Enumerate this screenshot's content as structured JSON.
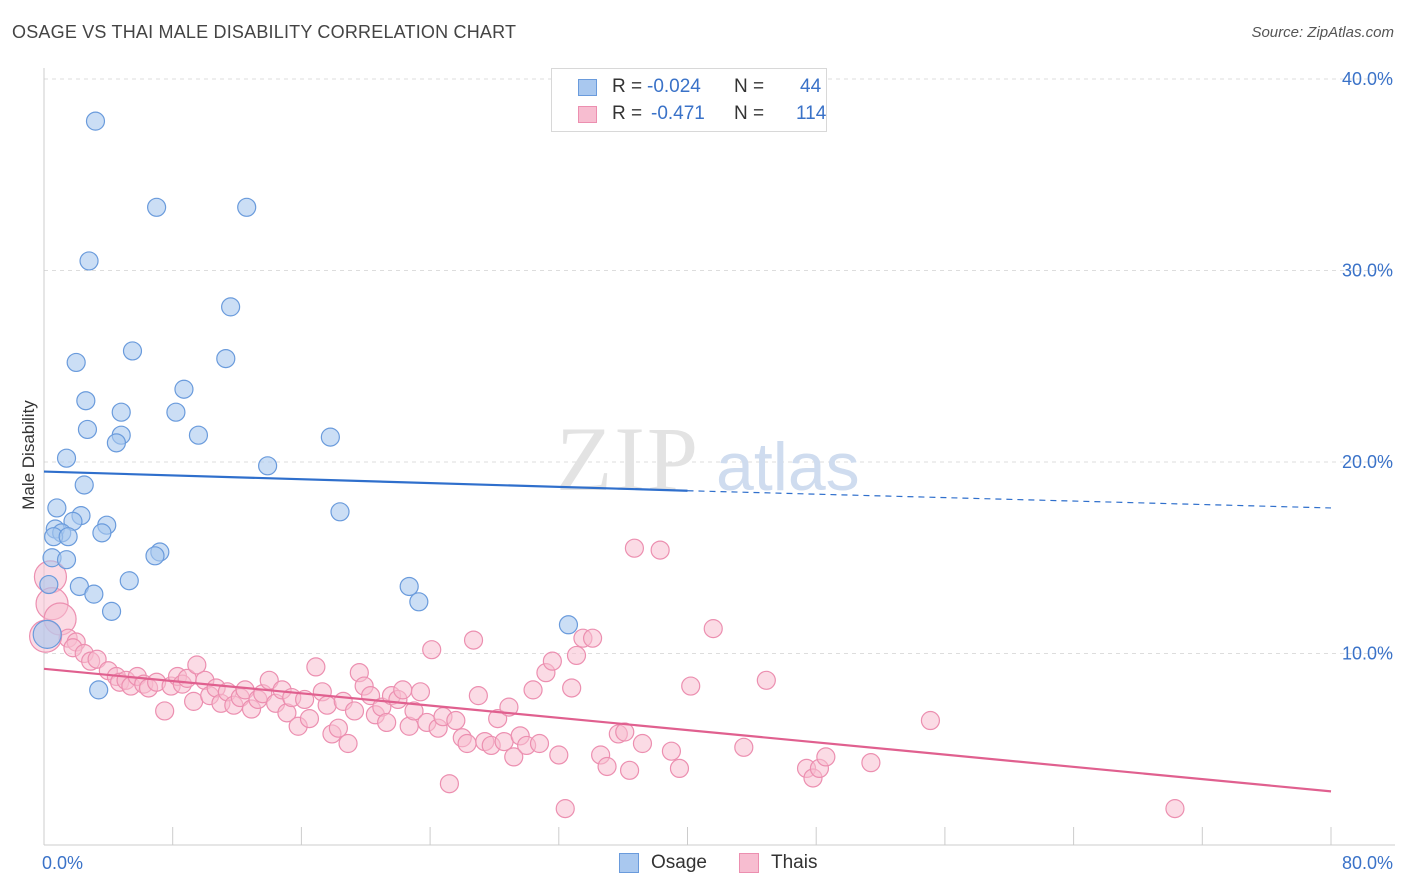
{
  "header": {
    "title": "OSAGE VS THAI MALE DISABILITY CORRELATION CHART",
    "source": "Source: ZipAtlas.com"
  },
  "legend": {
    "osage": {
      "r_label": "R =",
      "r_value": "-0.024",
      "n_label": "N =",
      "n_value": "44"
    },
    "thais": {
      "r_label": "R =",
      "r_value": "-0.471",
      "n_label": "N =",
      "n_value": "114"
    }
  },
  "bottom_legend": {
    "osage": "Osage",
    "thais": "Thais"
  },
  "colors": {
    "osage_fill": "#a9c8ef",
    "osage_stroke": "#6a9bdc",
    "osage_line": "#2f6fcc",
    "thais_fill": "#f7bdd0",
    "thais_stroke": "#ec8fb0",
    "thais_line": "#e0608f",
    "tick_text": "#3a72c8",
    "grid": "#dddddd"
  },
  "watermark": "ZIPatlas",
  "chart_data": {
    "type": "scatter",
    "title": "OSAGE VS THAI MALE DISABILITY CORRELATION CHART",
    "xlabel": "",
    "ylabel": "Male Disability",
    "xlim": [
      0,
      80
    ],
    "ylim": [
      0,
      40
    ],
    "x_ticks_labeled": [
      "0.0%",
      "80.0%"
    ],
    "y_ticks": [
      {
        "value": 10,
        "label": "10.0%"
      },
      {
        "value": 20,
        "label": "20.0%"
      },
      {
        "value": 30,
        "label": "30.0%"
      },
      {
        "value": 40,
        "label": "40.0%"
      }
    ],
    "grid": true,
    "legend_position": "top-center",
    "series": [
      {
        "name": "Osage",
        "r": -0.024,
        "n": 44,
        "trend": {
          "x0": 0,
          "y0": 19.5,
          "x1": 40,
          "y1": 18.5,
          "dashed_to_x": 80,
          "dashed_y": 17.6
        },
        "points": [
          [
            3.2,
            37.8
          ],
          [
            7.0,
            33.3
          ],
          [
            12.6,
            33.3
          ],
          [
            2.8,
            30.5
          ],
          [
            11.6,
            28.1
          ],
          [
            5.5,
            25.8
          ],
          [
            11.3,
            25.4
          ],
          [
            2.0,
            25.2
          ],
          [
            8.7,
            23.8
          ],
          [
            2.6,
            23.2
          ],
          [
            4.8,
            22.6
          ],
          [
            8.2,
            22.6
          ],
          [
            2.7,
            21.7
          ],
          [
            4.8,
            21.4
          ],
          [
            9.6,
            21.4
          ],
          [
            17.8,
            21.3
          ],
          [
            4.5,
            21.0
          ],
          [
            1.4,
            20.2
          ],
          [
            13.9,
            19.8
          ],
          [
            2.5,
            18.8
          ],
          [
            0.8,
            17.6
          ],
          [
            18.4,
            17.4
          ],
          [
            2.3,
            17.2
          ],
          [
            1.8,
            16.9
          ],
          [
            3.9,
            16.7
          ],
          [
            0.7,
            16.5
          ],
          [
            1.1,
            16.3
          ],
          [
            3.6,
            16.3
          ],
          [
            0.6,
            16.1
          ],
          [
            1.5,
            16.1
          ],
          [
            7.2,
            15.3
          ],
          [
            6.9,
            15.1
          ],
          [
            0.5,
            15.0
          ],
          [
            1.4,
            14.9
          ],
          [
            5.3,
            13.8
          ],
          [
            0.3,
            13.6
          ],
          [
            2.2,
            13.5
          ],
          [
            22.7,
            13.5
          ],
          [
            3.1,
            13.1
          ],
          [
            23.3,
            12.7
          ],
          [
            4.2,
            12.2
          ],
          [
            32.6,
            11.5
          ],
          [
            0.2,
            11.0
          ],
          [
            3.4,
            8.1
          ]
        ]
      },
      {
        "name": "Thais",
        "r": -0.471,
        "n": 114,
        "trend": {
          "x0": 0,
          "y0": 9.2,
          "x1": 80,
          "y1": 2.8
        },
        "points": [
          [
            0.4,
            14.0
          ],
          [
            0.5,
            12.6
          ],
          [
            1.0,
            11.8
          ],
          [
            1.5,
            10.8
          ],
          [
            2.0,
            10.6
          ],
          [
            1.8,
            10.3
          ],
          [
            2.5,
            10.0
          ],
          [
            2.9,
            9.6
          ],
          [
            3.3,
            9.7
          ],
          [
            4.0,
            9.1
          ],
          [
            4.5,
            8.8
          ],
          [
            4.7,
            8.5
          ],
          [
            5.1,
            8.6
          ],
          [
            5.4,
            8.3
          ],
          [
            5.8,
            8.8
          ],
          [
            6.2,
            8.4
          ],
          [
            6.5,
            8.2
          ],
          [
            7.0,
            8.5
          ],
          [
            7.5,
            7.0
          ],
          [
            7.9,
            8.3
          ],
          [
            8.3,
            8.8
          ],
          [
            8.6,
            8.4
          ],
          [
            8.9,
            8.7
          ],
          [
            9.3,
            7.5
          ],
          [
            9.5,
            9.4
          ],
          [
            10.0,
            8.6
          ],
          [
            10.3,
            7.8
          ],
          [
            10.7,
            8.2
          ],
          [
            11.0,
            7.4
          ],
          [
            11.4,
            8.0
          ],
          [
            11.8,
            7.3
          ],
          [
            12.2,
            7.7
          ],
          [
            12.5,
            8.1
          ],
          [
            12.9,
            7.1
          ],
          [
            13.3,
            7.6
          ],
          [
            13.6,
            7.9
          ],
          [
            14.0,
            8.6
          ],
          [
            14.4,
            7.4
          ],
          [
            14.8,
            8.1
          ],
          [
            15.1,
            6.9
          ],
          [
            15.4,
            7.7
          ],
          [
            15.8,
            6.2
          ],
          [
            16.2,
            7.6
          ],
          [
            16.5,
            6.6
          ],
          [
            16.9,
            9.3
          ],
          [
            17.3,
            8.0
          ],
          [
            17.6,
            7.3
          ],
          [
            17.9,
            5.8
          ],
          [
            18.3,
            6.1
          ],
          [
            18.6,
            7.5
          ],
          [
            18.9,
            5.3
          ],
          [
            19.3,
            7.0
          ],
          [
            19.6,
            9.0
          ],
          [
            19.9,
            8.3
          ],
          [
            20.3,
            7.8
          ],
          [
            20.6,
            6.8
          ],
          [
            21.0,
            7.2
          ],
          [
            21.3,
            6.4
          ],
          [
            21.6,
            7.8
          ],
          [
            22.0,
            7.6
          ],
          [
            22.3,
            8.1
          ],
          [
            22.7,
            6.2
          ],
          [
            23.0,
            7.0
          ],
          [
            23.4,
            8.0
          ],
          [
            23.8,
            6.4
          ],
          [
            24.1,
            10.2
          ],
          [
            24.5,
            6.1
          ],
          [
            24.8,
            6.7
          ],
          [
            25.2,
            3.2
          ],
          [
            25.6,
            6.5
          ],
          [
            26.0,
            5.6
          ],
          [
            26.3,
            5.3
          ],
          [
            26.7,
            10.7
          ],
          [
            27.0,
            7.8
          ],
          [
            27.4,
            5.4
          ],
          [
            27.8,
            5.2
          ],
          [
            28.2,
            6.6
          ],
          [
            28.6,
            5.4
          ],
          [
            28.9,
            7.2
          ],
          [
            29.2,
            4.6
          ],
          [
            29.6,
            5.7
          ],
          [
            30.0,
            5.2
          ],
          [
            30.4,
            8.1
          ],
          [
            30.8,
            5.3
          ],
          [
            31.2,
            9.0
          ],
          [
            31.6,
            9.6
          ],
          [
            32.0,
            4.7
          ],
          [
            32.4,
            1.9
          ],
          [
            32.8,
            8.2
          ],
          [
            33.1,
            9.9
          ],
          [
            33.5,
            10.8
          ],
          [
            34.1,
            10.8
          ],
          [
            34.6,
            4.7
          ],
          [
            35.0,
            4.1
          ],
          [
            35.7,
            5.8
          ],
          [
            36.1,
            5.9
          ],
          [
            36.4,
            3.9
          ],
          [
            36.7,
            15.5
          ],
          [
            37.2,
            5.3
          ],
          [
            38.3,
            15.4
          ],
          [
            39.0,
            4.9
          ],
          [
            39.5,
            4.0
          ],
          [
            40.2,
            8.3
          ],
          [
            41.6,
            11.3
          ],
          [
            43.5,
            5.1
          ],
          [
            44.9,
            8.6
          ],
          [
            47.4,
            4.0
          ],
          [
            47.8,
            3.5
          ],
          [
            48.2,
            4.0
          ],
          [
            48.6,
            4.6
          ],
          [
            51.4,
            4.3
          ],
          [
            55.1,
            6.5
          ],
          [
            70.3,
            1.9
          ],
          [
            0.1,
            10.9
          ]
        ]
      }
    ]
  }
}
